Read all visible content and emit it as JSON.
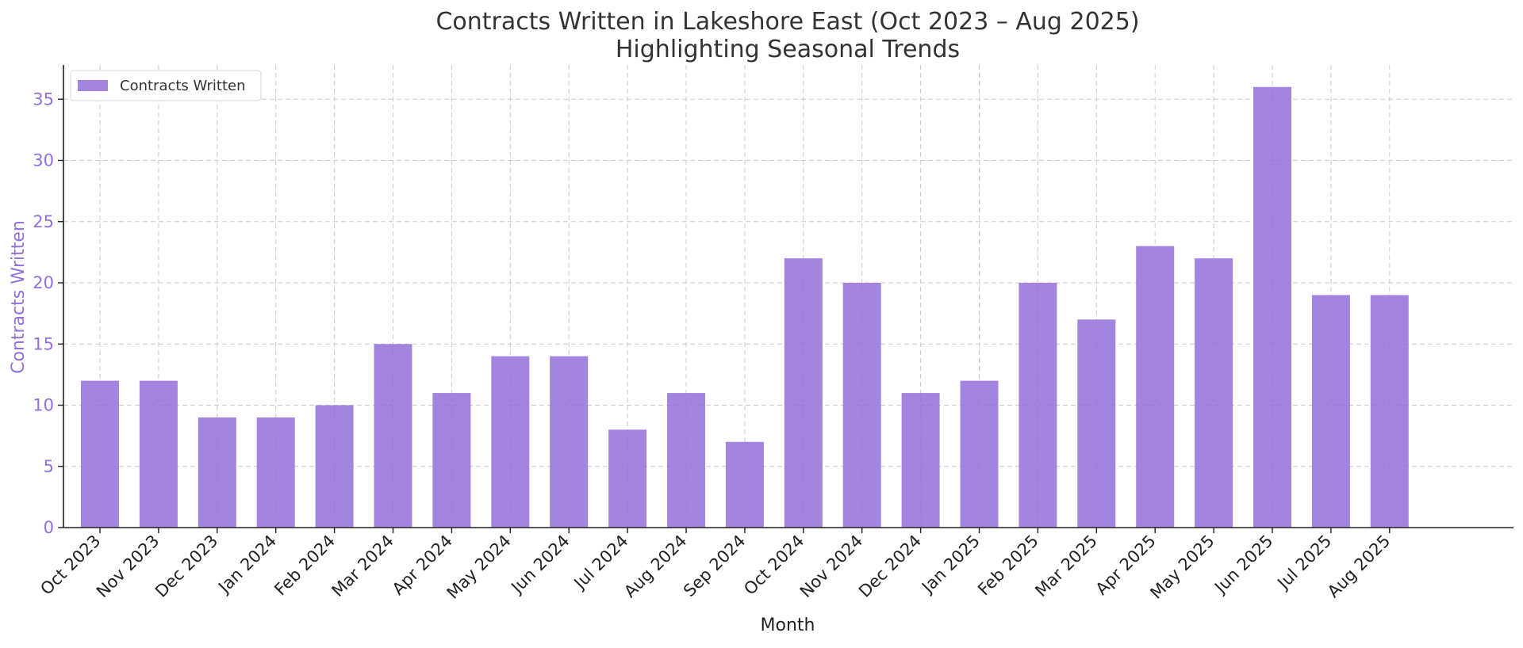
{
  "chart_data": {
    "type": "bar",
    "title": "Contracts Written in Lakeshore East (Oct 2023 – Aug 2025)",
    "subtitle": "Highlighting Seasonal Trends",
    "xlabel": "Month",
    "ylabel": "Contracts Written",
    "categories": [
      "Oct 2023",
      "Nov 2023",
      "Dec 2023",
      "Jan 2024",
      "Feb 2024",
      "Mar 2024",
      "Apr 2024",
      "May 2024",
      "Jun 2024",
      "Jul 2024",
      "Aug 2024",
      "Sep 2024",
      "Oct 2024",
      "Nov 2024",
      "Dec 2024",
      "Jan 2025",
      "Feb 2025",
      "Mar 2025",
      "Apr 2025",
      "May 2025",
      "Jun 2025",
      "Jul 2025",
      "Aug 2025"
    ],
    "series": [
      {
        "name": "Contracts Written",
        "values": [
          12,
          12,
          9,
          9,
          10,
          15,
          11,
          14,
          14,
          8,
          11,
          7,
          22,
          20,
          11,
          12,
          20,
          17,
          23,
          22,
          36,
          19,
          19
        ],
        "color": "#9370DB"
      }
    ],
    "ylim": [
      0,
      37.8
    ],
    "yticks": [
      0,
      5,
      10,
      15,
      20,
      25,
      30,
      35
    ],
    "grid": true,
    "legend_position": "top-left",
    "colors": {
      "bar": "#9370DB",
      "ylabel": "#9370DB",
      "axis": "#222222",
      "grid": "#cccccc"
    }
  }
}
